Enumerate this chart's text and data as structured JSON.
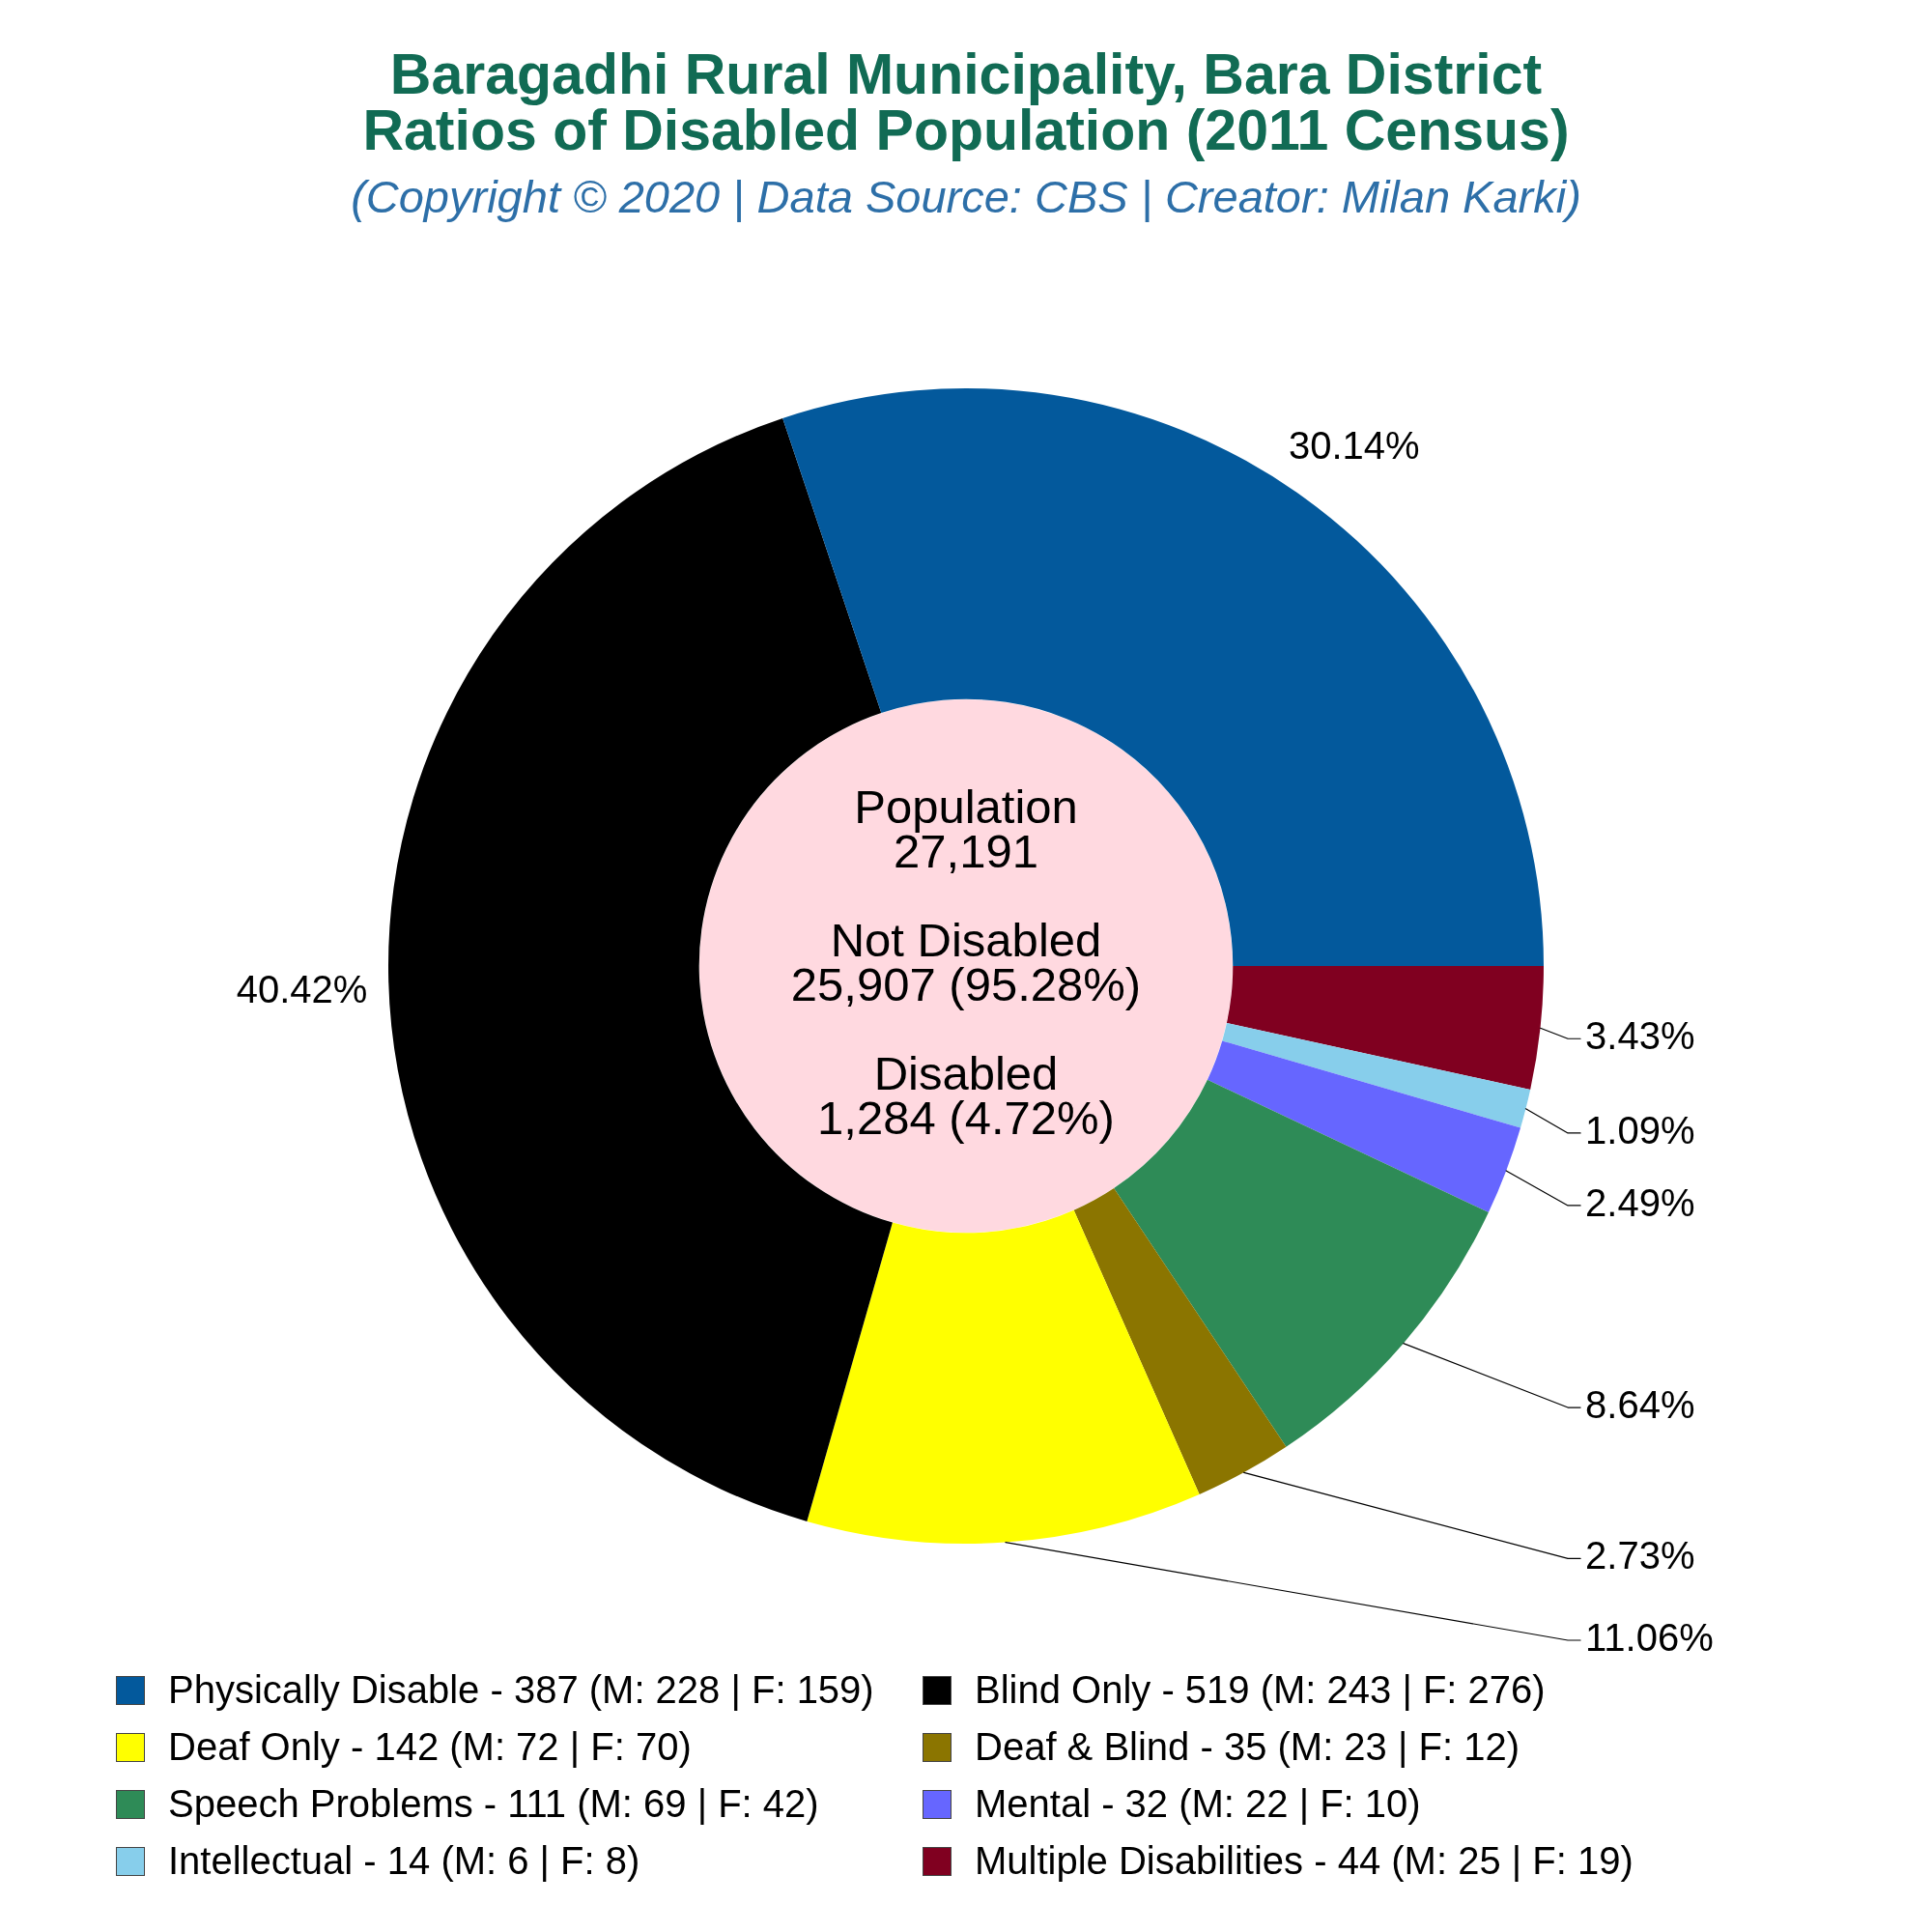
{
  "chart_data": {
    "type": "donut",
    "title": "Baragadhi Rural Municipality, Bara District\nRatios of Disabled Population (2011 Census)",
    "subtitle": "(Copyright © 2020 | Data Source: CBS | Creator: Milan Karki)",
    "categories": [
      "Physically Disable - 387 (M: 228 | F: 159)",
      "Blind Only - 519 (M: 243 | F: 276)",
      "Deaf Only - 142 (M: 72 | F: 70)",
      "Deaf & Blind - 35 (M: 23 | F: 12)",
      "Speech Problems - 111 (M: 69 | F: 42)",
      "Mental - 32 (M: 22 | F: 10)",
      "Intellectual - 14 (M: 6 | F: 8)",
      "Multiple Disabilities - 44 (M: 25 | F: 19)"
    ],
    "values": [
      30.14,
      40.42,
      11.06,
      2.73,
      8.64,
      2.49,
      1.09,
      3.43
    ],
    "value_labels": [
      "30.14%",
      "40.42%",
      "11.06%",
      "2.73%",
      "8.64%",
      "2.49%",
      "1.09%",
      "3.43%"
    ],
    "colors": [
      "#03599c",
      "#000000",
      "#ffff00",
      "#8b7500",
      "#2e8b57",
      "#6666ff",
      "#87ceeb",
      "#800020"
    ],
    "annotations": [
      "Population\n27,191",
      "Not Disabled\n25,907 (95.28%)",
      "Disabled\n1,284 (4.72%)"
    ],
    "legend": "bottom"
  }
}
